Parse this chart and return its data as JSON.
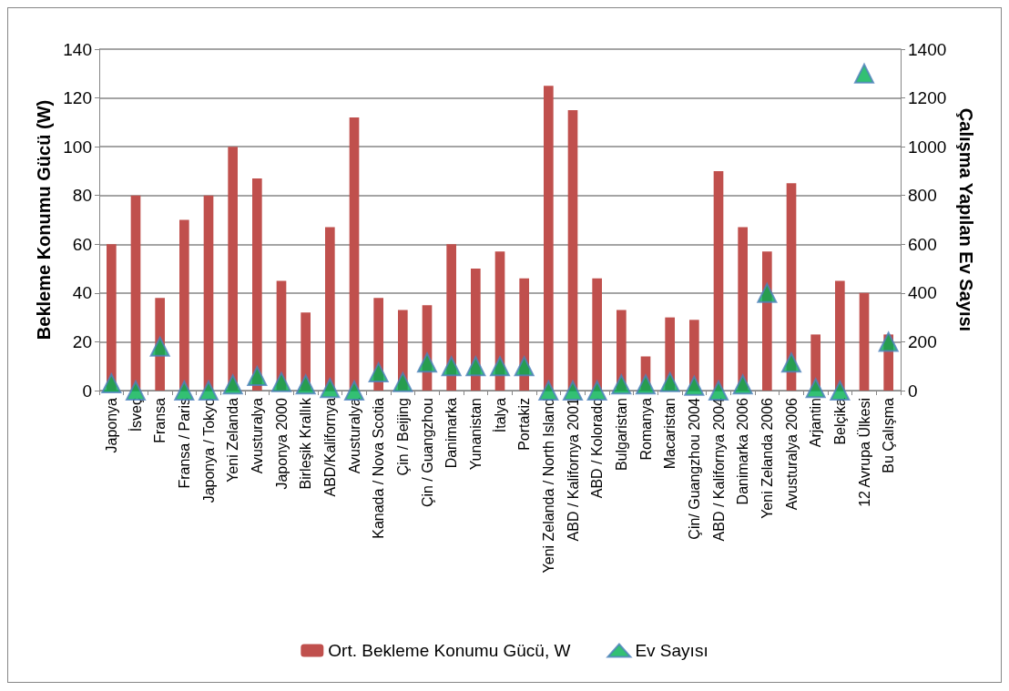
{
  "chart_data": {
    "type": "bar",
    "ylabel": "Bekleme Konumu Gücü (W)",
    "y2label": "Çalışma Yapılan Ev Sayısı",
    "categories": [
      "Japonya",
      "İsveç",
      "Fransa",
      "Fransa / Paris",
      "Japonya / Tokyo",
      "Yeni Zelanda",
      "Avusturalya",
      "Japonya 2000",
      "Birleşik Krallık",
      "ABD/Kalifornya",
      "Avusturalya",
      "Kanada / Nova Scotia",
      "Çin / Beijing",
      "Çin / Guangzhou",
      "Danimarka",
      "Yunanistan",
      "İtalya",
      "Portakiz",
      "Yeni Zelanda / North Island",
      "ABD / Kalifornya 2001",
      "ABD / Kolorado",
      "Bulgaristan",
      "Romanya",
      "Macaristan",
      "Çin/ Guangzhou 2004",
      "ABD / Kalifornya 2004",
      "Danimarka 2006",
      "Yeni Zelanda 2006",
      "Avusturalya 2006",
      "Arjantin",
      "Belçika",
      "12 Avrupa Ülkesi",
      "Bu Çalışma"
    ],
    "series": [
      {
        "name": "Ort. Bekleme Konumu Gücü, W",
        "color": "#c0504d",
        "values": [
          60,
          80,
          38,
          70,
          80,
          100,
          87,
          45,
          32,
          67,
          112,
          38,
          33,
          35,
          60,
          50,
          57,
          46,
          125,
          115,
          46,
          33,
          14,
          30,
          29,
          90,
          67,
          57,
          85,
          23,
          45,
          40,
          23
        ]
      },
      {
        "name": "Ev Sayısı",
        "type": "scatter",
        "axis": "y2",
        "color": "#00b050",
        "marker": "triangle",
        "values": [
          30,
          0,
          180,
          0,
          0,
          25,
          60,
          35,
          25,
          10,
          0,
          75,
          35,
          115,
          100,
          100,
          100,
          100,
          0,
          0,
          0,
          25,
          25,
          35,
          20,
          0,
          25,
          400,
          115,
          10,
          0,
          1300,
          200
        ]
      }
    ],
    "ylim": [
      0,
      140
    ],
    "yticks": [
      0,
      20,
      40,
      60,
      80,
      100,
      120,
      140
    ],
    "y2lim": [
      0,
      1400
    ],
    "y2ticks": [
      0,
      200,
      400,
      600,
      800,
      1000,
      1200,
      1400
    ],
    "grid": "y",
    "legend": "bottom"
  }
}
